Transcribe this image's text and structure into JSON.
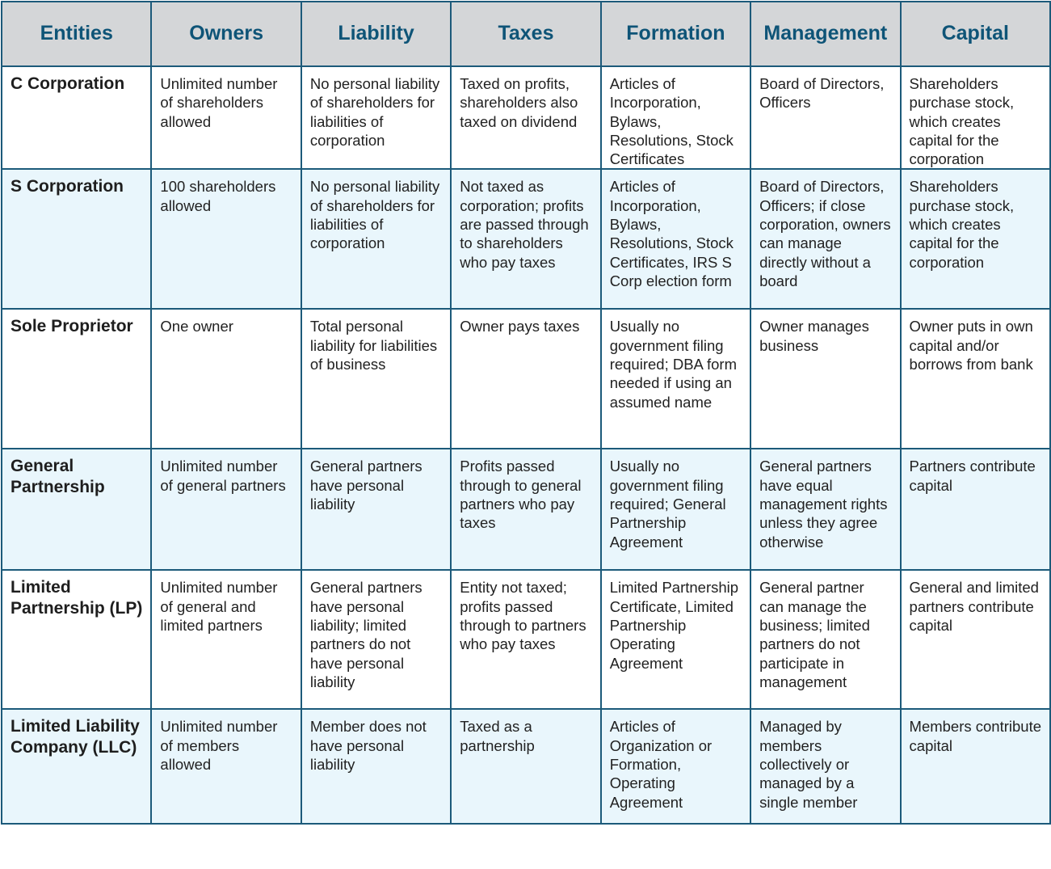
{
  "headers": [
    "Entities",
    "Owners",
    "Liability",
    "Taxes",
    "Formation",
    "Management",
    "Capital"
  ],
  "rows": [
    [
      "C Corporation",
      "Unlimited number of shareholders allowed",
      "No personal liability of shareholders for liabilities of corporation",
      "Taxed on profits, shareholders also taxed on dividend",
      "Articles of Incorporation, Bylaws, Resolutions, Stock Certificates",
      "Board of Directors, Officers",
      "Shareholders purchase stock, which creates capital for the corporation"
    ],
    [
      "S Corporation",
      "100 shareholders allowed",
      "No personal liability of shareholders for liabilities of corporation",
      "Not taxed as corporation; profits are passed through to shareholders who pay taxes",
      "Articles of Incorporation, Bylaws, Resolutions, Stock Certificates, IRS S Corp election form",
      "Board of Directors, Officers; if close corporation, owners can manage directly without a board",
      "Shareholders purchase stock, which creates capital for the corporation"
    ],
    [
      "Sole Proprietor",
      "One owner",
      "Total personal liability for liabilities of business",
      "Owner pays taxes",
      "Usually no government filing required; DBA form needed if using an assumed name",
      "Owner manages business",
      "Owner puts in own capital and/or borrows from bank"
    ],
    [
      "General Partnership",
      "Unlimited number of general partners",
      "General partners have personal liability",
      "Profits passed through to general partners who pay taxes",
      "Usually no government filing required; General Partnership Agreement",
      "General partners have equal management rights unless they agree otherwise",
      "Partners contribute capital"
    ],
    [
      "Limited Partnership (LP)",
      "Unlimited number of general and limited partners",
      "General partners have personal liability; limited partners do not have personal liability",
      "Entity not taxed; profits passed through to partners who pay taxes",
      "Limited Partnership Certificate, Limited Partnership Operating Agreement",
      "General partner can manage the business; limited partners do not participate in management",
      "General and limited partners contribute capital"
    ],
    [
      "Limited Liability Company (LLC)",
      "Unlimited number of members allowed",
      "Member does not have personal liability",
      "Taxed as a partnership",
      "Articles of Organization or Formation, Operating Agreement",
      "Managed by members collectively or managed by a single member",
      "Members contribute capital"
    ]
  ]
}
